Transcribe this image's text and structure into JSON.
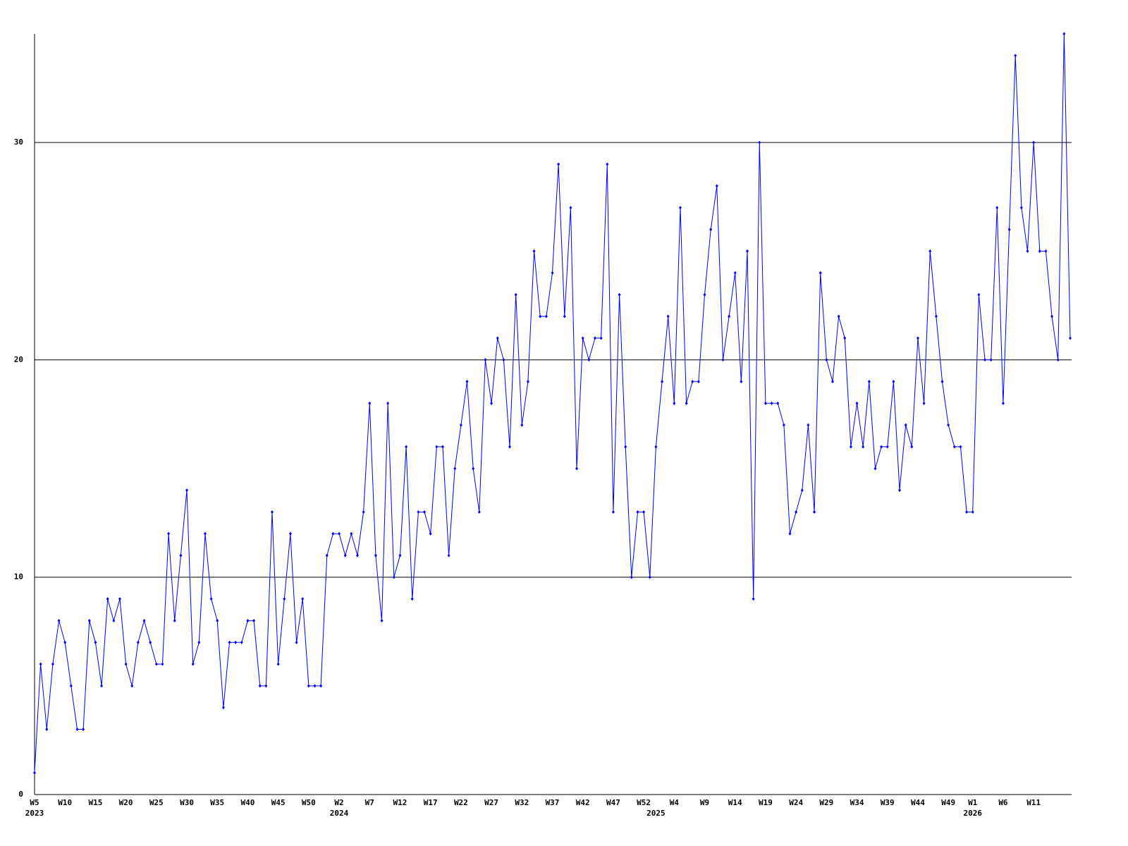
{
  "chart_data": {
    "type": "line",
    "categories": [
      "W5",
      null,
      null,
      null,
      null,
      "W10",
      null,
      null,
      null,
      null,
      "W15",
      null,
      null,
      null,
      null,
      "W20",
      null,
      null,
      null,
      null,
      "W25",
      null,
      null,
      null,
      null,
      "W30",
      null,
      null,
      null,
      null,
      "W35",
      null,
      null,
      null,
      null,
      "W40",
      null,
      null,
      null,
      null,
      "W45",
      null,
      null,
      null,
      null,
      "W50",
      null,
      null,
      null,
      null,
      "W2",
      null,
      null,
      null,
      null,
      "W7",
      null,
      null,
      null,
      null,
      "W12",
      null,
      null,
      null,
      null,
      "W17",
      null,
      null,
      null,
      null,
      "W22",
      null,
      null,
      null,
      null,
      "W27",
      null,
      null,
      null,
      null,
      "W32",
      null,
      null,
      null,
      null,
      "W37",
      null,
      null,
      null,
      null,
      "W42",
      null,
      null,
      null,
      null,
      "W47",
      null,
      null,
      null,
      null,
      "W52",
      null,
      null,
      null,
      null,
      "W4",
      null,
      null,
      null,
      null,
      "W9",
      null,
      null,
      null,
      null,
      "W14",
      null,
      null,
      null,
      null,
      "W19",
      null,
      null,
      null,
      null,
      "W24",
      null,
      null,
      null,
      null,
      "W29",
      null,
      null,
      null,
      null,
      "W34",
      null,
      null,
      null,
      null,
      "W39",
      null,
      null,
      null,
      null,
      "W44",
      null,
      null,
      null,
      null,
      "W49",
      null,
      null,
      null,
      "W1",
      null,
      null,
      null,
      null,
      "W6",
      null,
      null,
      null,
      null,
      "W11",
      null,
      null,
      null,
      null,
      null,
      null
    ],
    "category_years": [
      "2023",
      null,
      null,
      null,
      null,
      null,
      null,
      null,
      null,
      null,
      null,
      null,
      null,
      null,
      null,
      null,
      null,
      null,
      null,
      null,
      null,
      null,
      null,
      null,
      null,
      null,
      null,
      null,
      null,
      null,
      null,
      null,
      null,
      null,
      null,
      null,
      null,
      null,
      null,
      null,
      null,
      null,
      null,
      null,
      null,
      null,
      null,
      null,
      null,
      null,
      "2024",
      null,
      null,
      null,
      null,
      null,
      null,
      null,
      null,
      null,
      null,
      null,
      null,
      null,
      null,
      null,
      null,
      null,
      null,
      null,
      null,
      null,
      null,
      null,
      null,
      null,
      null,
      null,
      null,
      null,
      null,
      null,
      null,
      null,
      null,
      null,
      null,
      null,
      null,
      null,
      null,
      null,
      null,
      null,
      null,
      null,
      null,
      null,
      null,
      null,
      null,
      null,
      "2025",
      null,
      null,
      null,
      null,
      null,
      null,
      null,
      null,
      null,
      null,
      null,
      null,
      null,
      null,
      null,
      null,
      null,
      null,
      null,
      null,
      null,
      null,
      null,
      null,
      null,
      null,
      null,
      null,
      null,
      null,
      null,
      null,
      null,
      null,
      null,
      null,
      null,
      null,
      null,
      null,
      null,
      null,
      null,
      null,
      null,
      null,
      null,
      null,
      null,
      null,
      null,
      "2026",
      null,
      null,
      null,
      null,
      null,
      null,
      null,
      null,
      null,
      null,
      null,
      null,
      null,
      null,
      null,
      null
    ],
    "series": [
      {
        "color": "#0000ff",
        "values": [
          1,
          6,
          3,
          6,
          8,
          7,
          5,
          3,
          3,
          8,
          7,
          5,
          9,
          8,
          9,
          6,
          5,
          7,
          8,
          7,
          6,
          6,
          12,
          8,
          11,
          14,
          6,
          7,
          12,
          9,
          8,
          4,
          7,
          7,
          7,
          8,
          8,
          5,
          5,
          13,
          6,
          9,
          12,
          7,
          9,
          5,
          5,
          5,
          11,
          12,
          12,
          11,
          12,
          11,
          13,
          18,
          11,
          8,
          18,
          10,
          11,
          16,
          9,
          13,
          13,
          12,
          16,
          16,
          11,
          15,
          17,
          19,
          15,
          13,
          20,
          18,
          21,
          20,
          16,
          23,
          17,
          19,
          25,
          22,
          22,
          24,
          29,
          22,
          27,
          15,
          21,
          20,
          21,
          21,
          29,
          13,
          23,
          16,
          10,
          13,
          13,
          10,
          16,
          19,
          22,
          18,
          27,
          18,
          19,
          19,
          23,
          26,
          28,
          20,
          22,
          24,
          19,
          25,
          9,
          30,
          18,
          18,
          18,
          17,
          12,
          13,
          14,
          17,
          13,
          24,
          20,
          19,
          22,
          21,
          16,
          18,
          16,
          19,
          15,
          16,
          16,
          19,
          14,
          17,
          16,
          21,
          18,
          25,
          22,
          19,
          17,
          16,
          16,
          13,
          13,
          23,
          20,
          20,
          27,
          18,
          26,
          34,
          27,
          25,
          30,
          25,
          25,
          22,
          20,
          35,
          21
        ]
      }
    ],
    "ylim": [
      0,
      35
    ],
    "yticks": [
      0,
      10,
      20,
      30
    ],
    "grid": true
  }
}
